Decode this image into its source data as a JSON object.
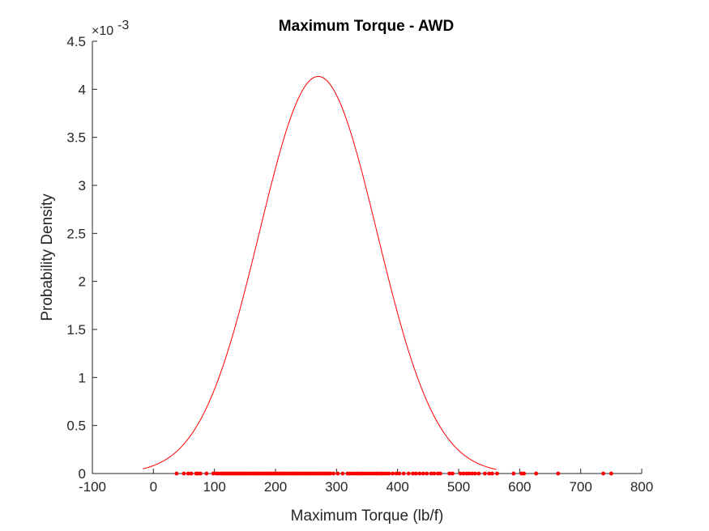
{
  "chart_data": {
    "type": "line",
    "title": "Maximum Torque - AWD",
    "xlabel": "Maximum Torque (lb/f)",
    "ylabel": "Probability Density",
    "xlim": [
      -100,
      800
    ],
    "ylim": [
      0,
      0.0045
    ],
    "x_ticks": [
      "-100",
      "0",
      "100",
      "200",
      "300",
      "400",
      "500",
      "600",
      "700",
      "800"
    ],
    "y_ticks": [
      "0",
      "0.5",
      "1",
      "1.5",
      "2",
      "2.5",
      "3",
      "3.5",
      "4",
      "4.5"
    ],
    "y_exponent": {
      "base": "×10",
      "power": "-3"
    },
    "grid": false,
    "color": "#ff0000",
    "series": [
      {
        "kind": "normal-pdf-curve",
        "mean": 270,
        "std": 96.5,
        "x_range": [
          -17,
          562
        ]
      },
      {
        "kind": "rug-points",
        "y": 0,
        "x": [
          38,
          50,
          57,
          62,
          70,
          73,
          77,
          87,
          98,
          103,
          106,
          110,
          113,
          116,
          119,
          122,
          125,
          128,
          131,
          134,
          137,
          140,
          143,
          146,
          149,
          152,
          155,
          158,
          161,
          164,
          167,
          170,
          173,
          176,
          179,
          182,
          185,
          188,
          191,
          194,
          197,
          200,
          203,
          206,
          209,
          212,
          215,
          218,
          221,
          224,
          227,
          230,
          233,
          236,
          239,
          242,
          245,
          248,
          251,
          254,
          257,
          260,
          263,
          266,
          269,
          272,
          275,
          278,
          281,
          284,
          287,
          290,
          295,
          302,
          310,
          318,
          322,
          326,
          330,
          334,
          338,
          342,
          346,
          350,
          354,
          358,
          362,
          366,
          370,
          374,
          378,
          382,
          386,
          392,
          398,
          403,
          410,
          418,
          425,
          430,
          436,
          442,
          448,
          455,
          460,
          466,
          470,
          485,
          490,
          503,
          508,
          513,
          517,
          522,
          527,
          533,
          543,
          550,
          555,
          563,
          590,
          603,
          607,
          627,
          663,
          737,
          750
        ]
      }
    ]
  }
}
